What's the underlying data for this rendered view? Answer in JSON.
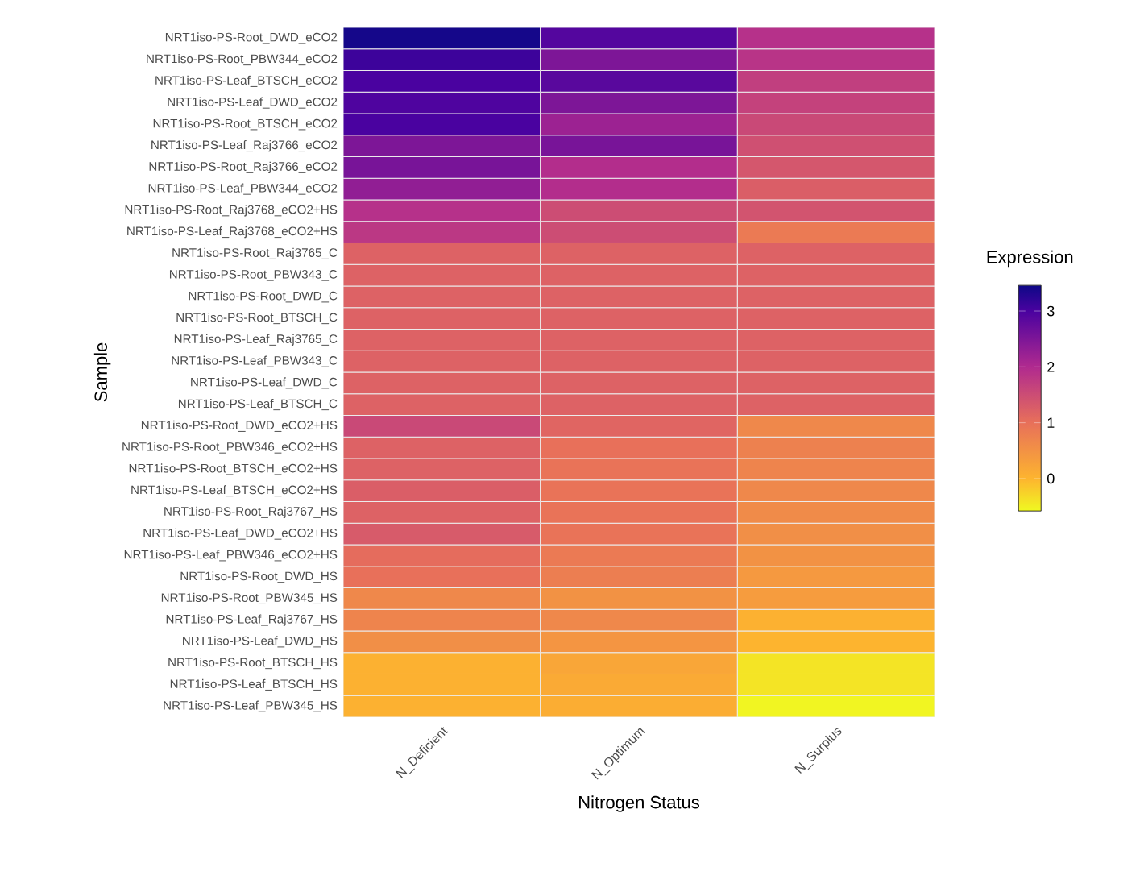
{
  "chart_data": {
    "type": "heatmap",
    "xlabel": "Nitrogen Status",
    "ylabel": "Sample",
    "clabel": "Expression",
    "categories": [
      "N_Deficient",
      "N_Optimum",
      "N_Surplus"
    ],
    "y_categories": [
      "NRT1iso-PS-Root_DWD_eCO2",
      "NRT1iso-PS-Root_PBW344_eCO2",
      "NRT1iso-PS-Leaf_BTSCH_eCO2",
      "NRT1iso-PS-Leaf_DWD_eCO2",
      "NRT1iso-PS-Root_BTSCH_eCO2",
      "NRT1iso-PS-Leaf_Raj3766_eCO2",
      "NRT1iso-PS-Root_Raj3766_eCO2",
      "NRT1iso-PS-Leaf_PBW344_eCO2",
      "NRT1iso-PS-Root_Raj3768_eCO2+HS",
      "NRT1iso-PS-Leaf_Raj3768_eCO2+HS",
      "NRT1iso-PS-Root_Raj3765_C",
      "NRT1iso-PS-Root_PBW343_C",
      "NRT1iso-PS-Root_DWD_C",
      "NRT1iso-PS-Root_BTSCH_C",
      "NRT1iso-PS-Leaf_Raj3765_C",
      "NRT1iso-PS-Leaf_PBW343_C",
      "NRT1iso-PS-Leaf_DWD_C",
      "NRT1iso-PS-Leaf_BTSCH_C",
      "NRT1iso-PS-Root_DWD_eCO2+HS",
      "NRT1iso-PS-Root_PBW346_eCO2+HS",
      "NRT1iso-PS-Root_BTSCH_eCO2+HS",
      "NRT1iso-PS-Leaf_BTSCH_eCO2+HS",
      "NRT1iso-PS-Root_Raj3767_HS",
      "NRT1iso-PS-Leaf_DWD_eCO2+HS",
      "NRT1iso-PS-Leaf_PBW346_eCO2+HS",
      "NRT1iso-PS-Root_DWD_HS",
      "NRT1iso-PS-Root_PBW345_HS",
      "NRT1iso-PS-Leaf_Raj3767_HS",
      "NRT1iso-PS-Leaf_DWD_HS",
      "NRT1iso-PS-Root_BTSCH_HS",
      "NRT1iso-PS-Leaf_BTSCH_HS",
      "NRT1iso-PS-Leaf_PBW345_HS"
    ],
    "cells": [
      [
        3.4,
        2.9,
        1.9
      ],
      [
        3.1,
        2.5,
        1.85
      ],
      [
        3.0,
        2.85,
        1.7
      ],
      [
        2.95,
        2.5,
        1.65
      ],
      [
        3.0,
        2.2,
        1.55
      ],
      [
        2.5,
        2.55,
        1.45
      ],
      [
        2.55,
        1.95,
        1.35
      ],
      [
        2.3,
        1.95,
        1.25
      ],
      [
        1.9,
        1.5,
        1.4
      ],
      [
        1.8,
        1.5,
        0.85
      ],
      [
        1.2,
        1.2,
        1.2
      ],
      [
        1.2,
        1.2,
        1.2
      ],
      [
        1.2,
        1.2,
        1.2
      ],
      [
        1.2,
        1.2,
        1.2
      ],
      [
        1.2,
        1.2,
        1.2
      ],
      [
        1.2,
        1.2,
        1.2
      ],
      [
        1.2,
        1.2,
        1.2
      ],
      [
        1.2,
        1.2,
        1.2
      ],
      [
        1.55,
        1.15,
        0.65
      ],
      [
        1.2,
        1.0,
        0.75
      ],
      [
        1.2,
        0.95,
        0.7
      ],
      [
        1.25,
        0.95,
        0.65
      ],
      [
        1.2,
        0.95,
        0.6
      ],
      [
        1.3,
        0.95,
        0.55
      ],
      [
        1.05,
        0.85,
        0.5
      ],
      [
        1.0,
        0.8,
        0.4
      ],
      [
        0.65,
        0.5,
        0.35
      ],
      [
        0.7,
        0.65,
        0.05
      ],
      [
        0.55,
        0.45,
        0.0
      ],
      [
        0.05,
        0.2,
        -0.4
      ],
      [
        0.05,
        0.15,
        -0.4
      ],
      [
        0.05,
        0.1,
        -0.55
      ]
    ],
    "clim": [
      -0.58,
      3.46
    ],
    "cticks": [
      0,
      1,
      2,
      3
    ]
  }
}
